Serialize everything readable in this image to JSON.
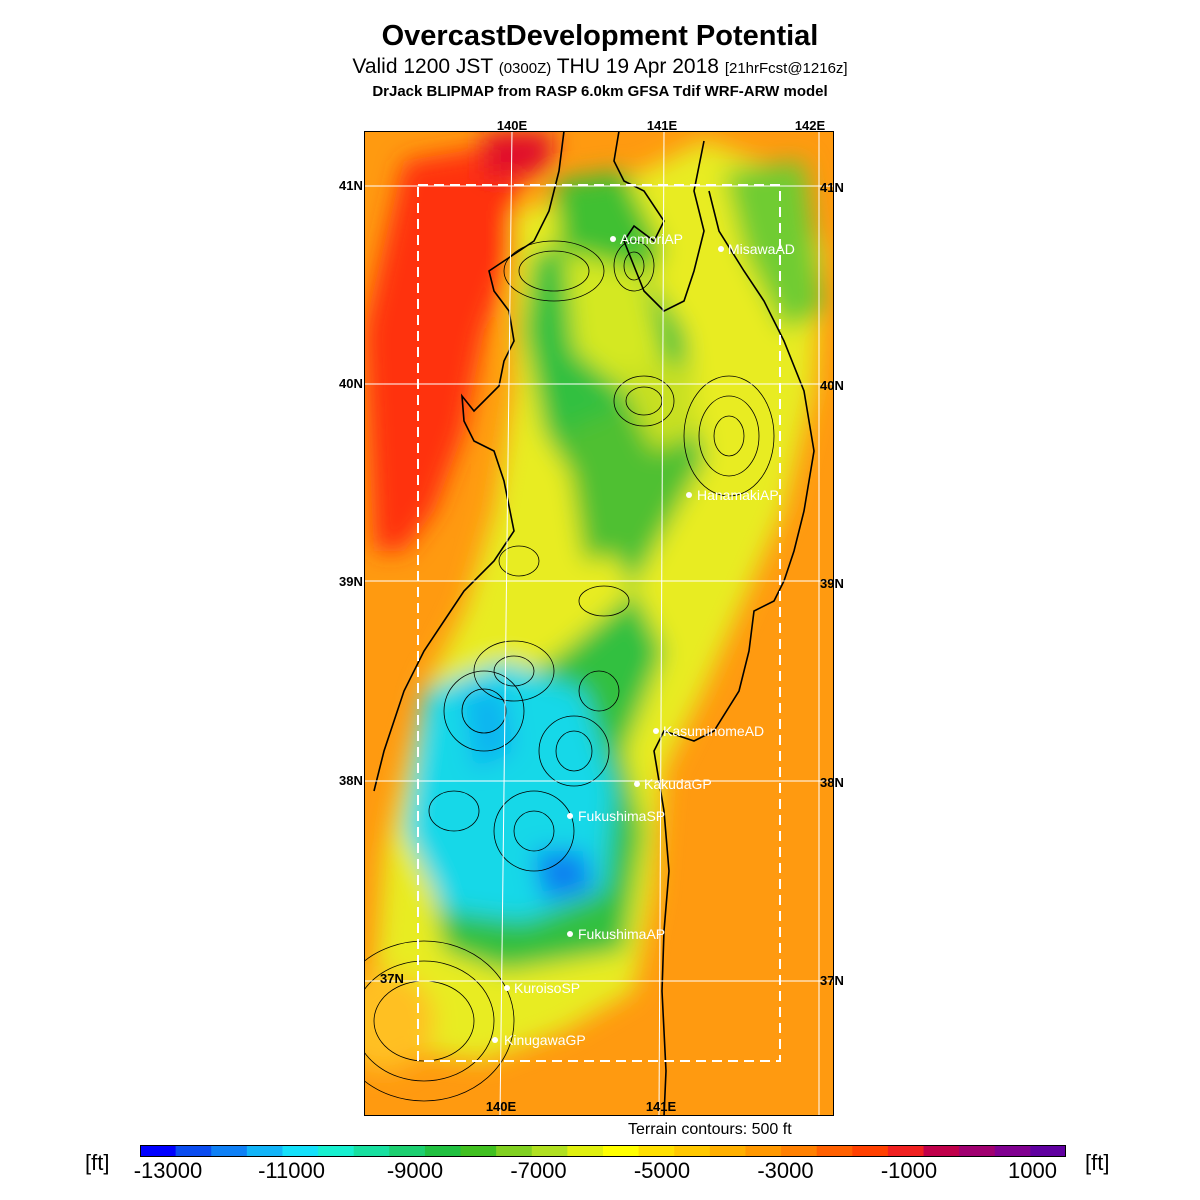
{
  "header": {
    "title": "OvercastDevelopment Potential",
    "valid_prefix": "Valid 1200 JST",
    "valid_zulu": "(0300Z)",
    "valid_date": "THU 19 Apr 2018",
    "forecast": "[21hrFcst@1216z]",
    "model": "DrJack BLIPMAP from RASP 6.0km GFSA Tdif WRF-ARW model"
  },
  "map": {
    "lon_labels_top": [
      "140E",
      "141E",
      "142E"
    ],
    "lon_labels_bottom": [
      "140E",
      "141E"
    ],
    "lat_labels_left": [
      "41N",
      "40N",
      "39N",
      "38N",
      "37N"
    ],
    "lat_labels_right": [
      "41N",
      "40N",
      "39N",
      "38N",
      "37N"
    ],
    "stations": [
      {
        "name": "AomoriAP"
      },
      {
        "name": "MisawaAD"
      },
      {
        "name": "HanamakiAP"
      },
      {
        "name": "KasuminomeAD"
      },
      {
        "name": "KakudaGP"
      },
      {
        "name": "FukushimaSP"
      },
      {
        "name": "FukushimaAP"
      },
      {
        "name": "KuroisoSP"
      },
      {
        "name": "KinugawaGP"
      }
    ],
    "contour_caption": "Terrain contours: 500 ft"
  },
  "colorbar": {
    "unit": "[ft]",
    "tick_labels": [
      "-13000",
      "-11000",
      "-9000",
      "-7000",
      "-5000",
      "-3000",
      "-1000",
      "1000"
    ],
    "colors": [
      "#0000ff",
      "#0a4cf0",
      "#0f80f5",
      "#12b4f8",
      "#14e0fa",
      "#18f0d0",
      "#18e0a0",
      "#1ccf70",
      "#20c040",
      "#40c020",
      "#80d020",
      "#b0e020",
      "#e0f010",
      "#ffff00",
      "#ffe000",
      "#ffc800",
      "#ffb000",
      "#ff9800",
      "#ff8000",
      "#ff6000",
      "#ff4000",
      "#f02020",
      "#c0004a",
      "#a00070",
      "#800090",
      "#6000a0"
    ]
  }
}
